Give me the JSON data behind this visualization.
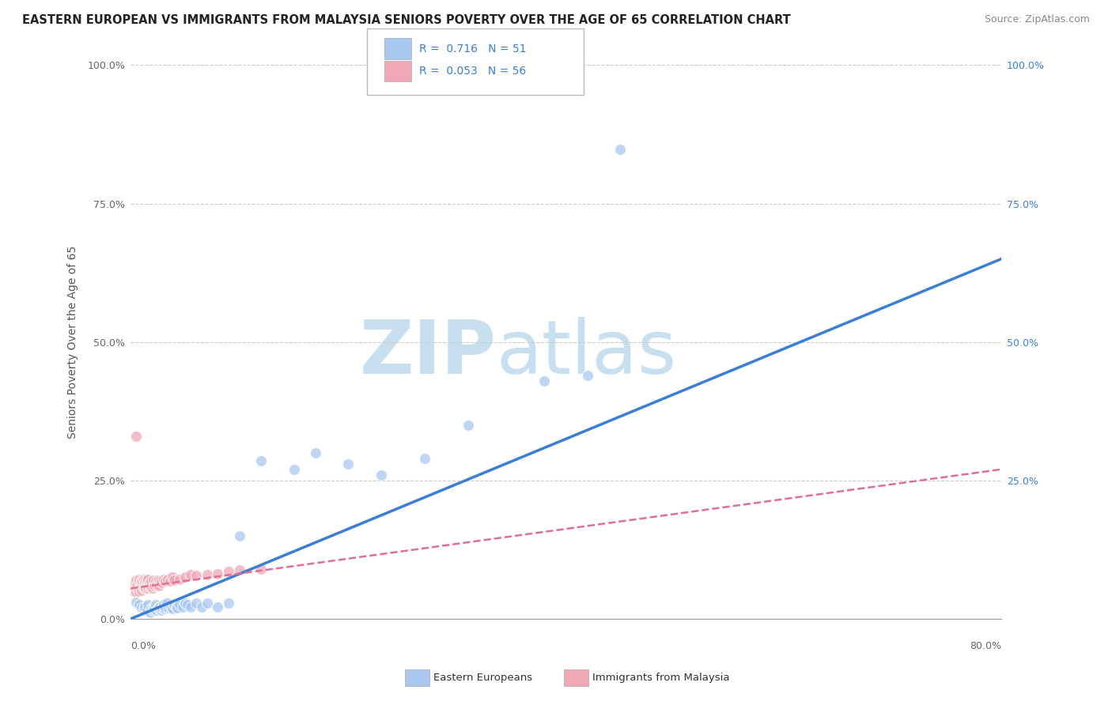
{
  "title": "EASTERN EUROPEAN VS IMMIGRANTS FROM MALAYSIA SENIORS POVERTY OVER THE AGE OF 65 CORRELATION CHART",
  "source": "Source: ZipAtlas.com",
  "ylabel": "Seniors Poverty Over the Age of 65",
  "watermark_top": "ZIP",
  "watermark_bot": "atlas",
  "legend_entries": [
    {
      "label": "Eastern Europeans",
      "R": "0.716",
      "N": "51",
      "color": "#a8c8f0"
    },
    {
      "label": "Immigrants from Malaysia",
      "R": "0.053",
      "N": "56",
      "color": "#f0a8b8"
    }
  ],
  "blue_scatter_x": [
    0.005,
    0.008,
    0.01,
    0.012,
    0.013,
    0.015,
    0.016,
    0.018,
    0.019,
    0.02,
    0.021,
    0.022,
    0.022,
    0.023,
    0.024,
    0.025,
    0.026,
    0.027,
    0.028,
    0.029,
    0.03,
    0.031,
    0.032,
    0.033,
    0.035,
    0.037,
    0.038,
    0.04,
    0.042,
    0.043,
    0.045,
    0.048,
    0.05,
    0.052,
    0.055,
    0.06,
    0.065,
    0.07,
    0.08,
    0.09,
    0.1,
    0.12,
    0.15,
    0.17,
    0.2,
    0.23,
    0.27,
    0.31,
    0.38,
    0.42,
    0.45
  ],
  "blue_scatter_y": [
    0.03,
    0.025,
    0.02,
    0.018,
    0.022,
    0.015,
    0.025,
    0.012,
    0.018,
    0.02,
    0.015,
    0.022,
    0.018,
    0.025,
    0.015,
    0.02,
    0.018,
    0.022,
    0.015,
    0.02,
    0.025,
    0.018,
    0.022,
    0.028,
    0.02,
    0.022,
    0.018,
    0.025,
    0.022,
    0.02,
    0.025,
    0.022,
    0.028,
    0.025,
    0.022,
    0.028,
    0.022,
    0.028,
    0.022,
    0.028,
    0.15,
    0.285,
    0.27,
    0.3,
    0.28,
    0.26,
    0.29,
    0.35,
    0.43,
    0.44,
    0.848
  ],
  "pink_scatter_x": [
    0.002,
    0.003,
    0.004,
    0.005,
    0.005,
    0.006,
    0.006,
    0.007,
    0.007,
    0.008,
    0.008,
    0.009,
    0.009,
    0.01,
    0.01,
    0.011,
    0.011,
    0.012,
    0.012,
    0.013,
    0.013,
    0.014,
    0.014,
    0.015,
    0.015,
    0.016,
    0.016,
    0.017,
    0.017,
    0.018,
    0.019,
    0.02,
    0.021,
    0.022,
    0.023,
    0.024,
    0.025,
    0.026,
    0.027,
    0.028,
    0.03,
    0.032,
    0.034,
    0.036,
    0.038,
    0.04,
    0.045,
    0.05,
    0.055,
    0.06,
    0.07,
    0.08,
    0.09,
    0.1,
    0.12,
    0.005
  ],
  "pink_scatter_y": [
    0.055,
    0.05,
    0.065,
    0.048,
    0.07,
    0.055,
    0.062,
    0.05,
    0.068,
    0.055,
    0.072,
    0.058,
    0.065,
    0.052,
    0.07,
    0.06,
    0.068,
    0.055,
    0.072,
    0.058,
    0.065,
    0.055,
    0.07,
    0.06,
    0.068,
    0.055,
    0.072,
    0.058,
    0.065,
    0.06,
    0.068,
    0.055,
    0.07,
    0.06,
    0.068,
    0.062,
    0.07,
    0.06,
    0.068,
    0.065,
    0.072,
    0.068,
    0.072,
    0.068,
    0.075,
    0.07,
    0.072,
    0.075,
    0.08,
    0.078,
    0.08,
    0.082,
    0.085,
    0.088,
    0.09,
    0.33
  ],
  "blue_line_x": [
    0.0,
    0.8
  ],
  "blue_line_y": [
    0.0,
    0.65
  ],
  "pink_line_x": [
    0.0,
    0.8
  ],
  "pink_line_y": [
    0.055,
    0.27
  ],
  "xlim": [
    0.0,
    0.8
  ],
  "ylim": [
    0.0,
    1.0
  ],
  "yticks": [
    0.0,
    0.25,
    0.5,
    0.75,
    1.0
  ],
  "ytick_left_labels": [
    "0.0%",
    "25.0%",
    "50.0%",
    "75.0%",
    "100.0%"
  ],
  "ytick_right_labels": [
    "",
    "25.0%",
    "50.0%",
    "75.0%",
    "100.0%"
  ],
  "xtick_labels": [
    "0.0%",
    "80.0%"
  ],
  "grid_color": "#cccccc",
  "blue_color": "#a8c8f0",
  "pink_color": "#f0a8b8",
  "blue_line_color": "#3a7fd5",
  "pink_line_color": "#e07090",
  "watermark_color": "#daeaf8",
  "title_fontsize": 10.5,
  "axis_label_fontsize": 10,
  "scatter_size": 100,
  "background_color": "#ffffff"
}
